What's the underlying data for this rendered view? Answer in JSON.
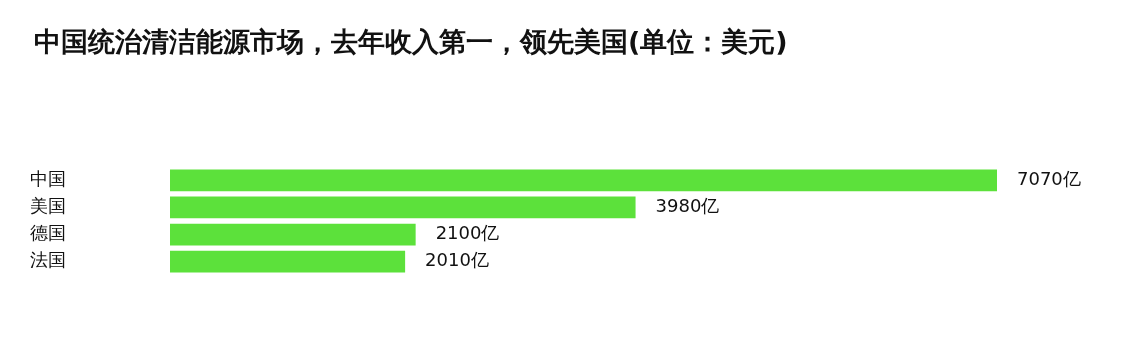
{
  "chart_data": {
    "type": "bar",
    "orientation": "horizontal",
    "title": "中国统治清洁能源市场，去年收入第一，领先美国(单位：美元)",
    "categories": [
      "中国",
      "美国",
      "德国",
      "法国"
    ],
    "values": [
      7070,
      3980,
      2100,
      2010
    ],
    "value_labels": [
      "7070亿",
      "3980亿",
      "2100亿",
      "2010亿"
    ],
    "color": "#5ce13b"
  }
}
